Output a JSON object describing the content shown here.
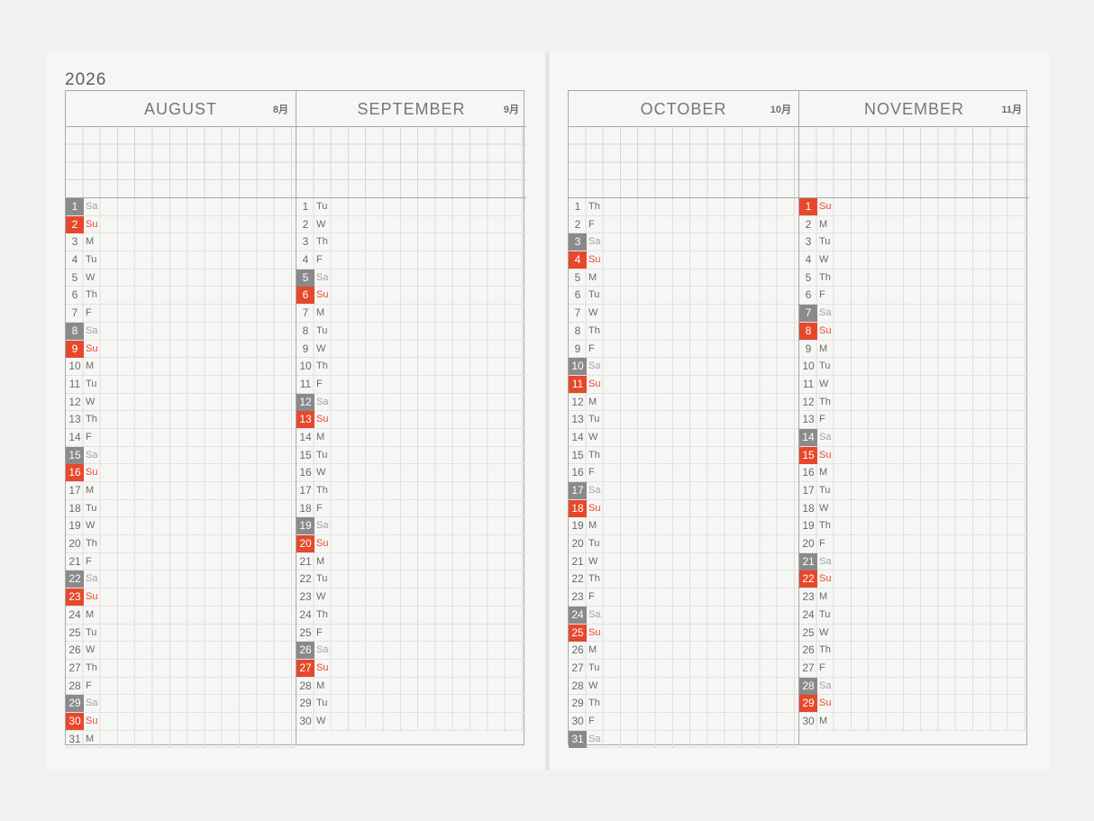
{
  "year": "2026",
  "colors": {
    "saturday": "#8a8a8a",
    "sunday": "#e6482b",
    "grid": "#d6d6d6",
    "border": "#a8a8a8"
  },
  "pages": [
    {
      "year": "2026",
      "months": [
        {
          "name": "AUGUST",
          "kanji": "8月",
          "days": [
            {
              "n": "1",
              "w": "Sa"
            },
            {
              "n": "2",
              "w": "Su"
            },
            {
              "n": "3",
              "w": "M"
            },
            {
              "n": "4",
              "w": "Tu"
            },
            {
              "n": "5",
              "w": "W"
            },
            {
              "n": "6",
              "w": "Th"
            },
            {
              "n": "7",
              "w": "F"
            },
            {
              "n": "8",
              "w": "Sa"
            },
            {
              "n": "9",
              "w": "Su"
            },
            {
              "n": "10",
              "w": "M"
            },
            {
              "n": "11",
              "w": "Tu"
            },
            {
              "n": "12",
              "w": "W"
            },
            {
              "n": "13",
              "w": "Th"
            },
            {
              "n": "14",
              "w": "F"
            },
            {
              "n": "15",
              "w": "Sa"
            },
            {
              "n": "16",
              "w": "Su"
            },
            {
              "n": "17",
              "w": "M"
            },
            {
              "n": "18",
              "w": "Tu"
            },
            {
              "n": "19",
              "w": "W"
            },
            {
              "n": "20",
              "w": "Th"
            },
            {
              "n": "21",
              "w": "F"
            },
            {
              "n": "22",
              "w": "Sa"
            },
            {
              "n": "23",
              "w": "Su"
            },
            {
              "n": "24",
              "w": "M"
            },
            {
              "n": "25",
              "w": "Tu"
            },
            {
              "n": "26",
              "w": "W"
            },
            {
              "n": "27",
              "w": "Th"
            },
            {
              "n": "28",
              "w": "F"
            },
            {
              "n": "29",
              "w": "Sa"
            },
            {
              "n": "30",
              "w": "Su"
            },
            {
              "n": "31",
              "w": "M"
            }
          ]
        },
        {
          "name": "SEPTEMBER",
          "kanji": "9月",
          "days": [
            {
              "n": "1",
              "w": "Tu"
            },
            {
              "n": "2",
              "w": "W"
            },
            {
              "n": "3",
              "w": "Th"
            },
            {
              "n": "4",
              "w": "F"
            },
            {
              "n": "5",
              "w": "Sa"
            },
            {
              "n": "6",
              "w": "Su"
            },
            {
              "n": "7",
              "w": "M"
            },
            {
              "n": "8",
              "w": "Tu"
            },
            {
              "n": "9",
              "w": "W"
            },
            {
              "n": "10",
              "w": "Th"
            },
            {
              "n": "11",
              "w": "F"
            },
            {
              "n": "12",
              "w": "Sa"
            },
            {
              "n": "13",
              "w": "Su"
            },
            {
              "n": "14",
              "w": "M"
            },
            {
              "n": "15",
              "w": "Tu"
            },
            {
              "n": "16",
              "w": "W"
            },
            {
              "n": "17",
              "w": "Th"
            },
            {
              "n": "18",
              "w": "F"
            },
            {
              "n": "19",
              "w": "Sa"
            },
            {
              "n": "20",
              "w": "Su"
            },
            {
              "n": "21",
              "w": "M"
            },
            {
              "n": "22",
              "w": "Tu"
            },
            {
              "n": "23",
              "w": "W"
            },
            {
              "n": "24",
              "w": "Th"
            },
            {
              "n": "25",
              "w": "F"
            },
            {
              "n": "26",
              "w": "Sa"
            },
            {
              "n": "27",
              "w": "Su"
            },
            {
              "n": "28",
              "w": "M"
            },
            {
              "n": "29",
              "w": "Tu"
            },
            {
              "n": "30",
              "w": "W"
            }
          ]
        }
      ]
    },
    {
      "year": "",
      "months": [
        {
          "name": "OCTOBER",
          "kanji": "10月",
          "days": [
            {
              "n": "1",
              "w": "Th"
            },
            {
              "n": "2",
              "w": "F"
            },
            {
              "n": "3",
              "w": "Sa"
            },
            {
              "n": "4",
              "w": "Su"
            },
            {
              "n": "5",
              "w": "M"
            },
            {
              "n": "6",
              "w": "Tu"
            },
            {
              "n": "7",
              "w": "W"
            },
            {
              "n": "8",
              "w": "Th"
            },
            {
              "n": "9",
              "w": "F"
            },
            {
              "n": "10",
              "w": "Sa"
            },
            {
              "n": "11",
              "w": "Su"
            },
            {
              "n": "12",
              "w": "M"
            },
            {
              "n": "13",
              "w": "Tu"
            },
            {
              "n": "14",
              "w": "W"
            },
            {
              "n": "15",
              "w": "Th"
            },
            {
              "n": "16",
              "w": "F"
            },
            {
              "n": "17",
              "w": "Sa"
            },
            {
              "n": "18",
              "w": "Su"
            },
            {
              "n": "19",
              "w": "M"
            },
            {
              "n": "20",
              "w": "Tu"
            },
            {
              "n": "21",
              "w": "W"
            },
            {
              "n": "22",
              "w": "Th"
            },
            {
              "n": "23",
              "w": "F"
            },
            {
              "n": "24",
              "w": "Sa"
            },
            {
              "n": "25",
              "w": "Su"
            },
            {
              "n": "26",
              "w": "M"
            },
            {
              "n": "27",
              "w": "Tu"
            },
            {
              "n": "28",
              "w": "W"
            },
            {
              "n": "29",
              "w": "Th"
            },
            {
              "n": "30",
              "w": "F"
            },
            {
              "n": "31",
              "w": "Sa"
            }
          ]
        },
        {
          "name": "NOVEMBER",
          "kanji": "11月",
          "days": [
            {
              "n": "1",
              "w": "Su"
            },
            {
              "n": "2",
              "w": "M"
            },
            {
              "n": "3",
              "w": "Tu"
            },
            {
              "n": "4",
              "w": "W"
            },
            {
              "n": "5",
              "w": "Th"
            },
            {
              "n": "6",
              "w": "F"
            },
            {
              "n": "7",
              "w": "Sa"
            },
            {
              "n": "8",
              "w": "Su"
            },
            {
              "n": "9",
              "w": "M"
            },
            {
              "n": "10",
              "w": "Tu"
            },
            {
              "n": "11",
              "w": "W"
            },
            {
              "n": "12",
              "w": "Th"
            },
            {
              "n": "13",
              "w": "F"
            },
            {
              "n": "14",
              "w": "Sa"
            },
            {
              "n": "15",
              "w": "Su"
            },
            {
              "n": "16",
              "w": "M"
            },
            {
              "n": "17",
              "w": "Tu"
            },
            {
              "n": "18",
              "w": "W"
            },
            {
              "n": "19",
              "w": "Th"
            },
            {
              "n": "20",
              "w": "F"
            },
            {
              "n": "21",
              "w": "Sa"
            },
            {
              "n": "22",
              "w": "Su"
            },
            {
              "n": "23",
              "w": "M"
            },
            {
              "n": "24",
              "w": "Tu"
            },
            {
              "n": "25",
              "w": "W"
            },
            {
              "n": "26",
              "w": "Th"
            },
            {
              "n": "27",
              "w": "F"
            },
            {
              "n": "28",
              "w": "Sa"
            },
            {
              "n": "29",
              "w": "Su"
            },
            {
              "n": "30",
              "w": "M"
            }
          ]
        }
      ]
    }
  ]
}
